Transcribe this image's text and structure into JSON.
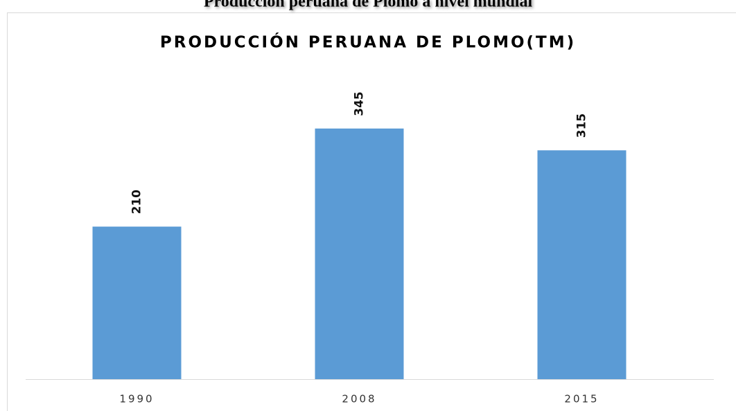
{
  "caption": "Producción peruana de Plomo a nivel mundial",
  "chart_data": {
    "type": "bar",
    "title": "PRODUCCIÓN PERUANA DE PLOMO(TM)",
    "categories": [
      "1990",
      "2008",
      "2015"
    ],
    "values": [
      210,
      345,
      315
    ],
    "color": "#5b9bd5",
    "ylim": [
      0,
      400
    ],
    "grid": false
  }
}
